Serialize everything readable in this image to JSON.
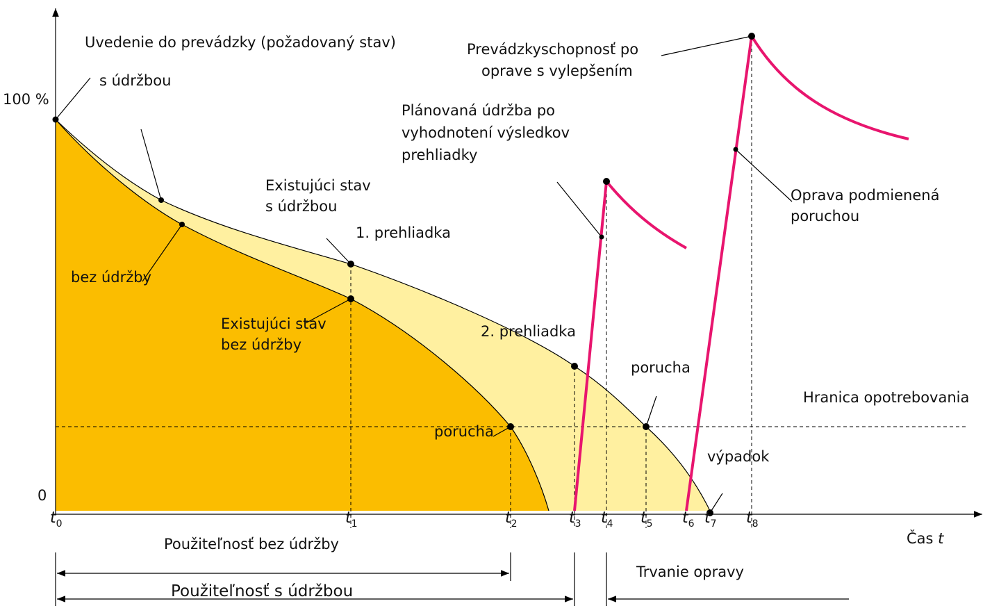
{
  "axis": {
    "y_top": "100 %",
    "y_zero": "0",
    "x_label": "Čas",
    "x_symbol": "t"
  },
  "time_ticks": [
    {
      "symbol": "t",
      "index": "0"
    },
    {
      "symbol": "t",
      "index": "1"
    },
    {
      "symbol": "t",
      "index": "2"
    },
    {
      "symbol": "t",
      "index": "3"
    },
    {
      "symbol": "t",
      "index": "4"
    },
    {
      "symbol": "t",
      "index": "5"
    },
    {
      "symbol": "t",
      "index": "6"
    },
    {
      "symbol": "t",
      "index": "7"
    },
    {
      "symbol": "t",
      "index": "8"
    }
  ],
  "annotations": {
    "commissioning": "Uvedenie do prevádzky (požadovaný stav)",
    "with_maintenance": "s údržbou",
    "without_maintenance": "bez údržby",
    "existing_with": [
      "Existujúci stav",
      "s údržbou"
    ],
    "first_inspection": "1. prehliadka",
    "existing_without": [
      "Existujúci stav",
      "bez údržby"
    ],
    "second_inspection": "2. prehliadka",
    "failure_1": "porucha",
    "failure_2": "porucha",
    "planned": [
      "Plánovaná údržba po",
      "vyhodnotení výsledkov",
      "prehliadky"
    ],
    "improved": [
      "Prevádzkyschopnosť po",
      "oprave s vylepšením"
    ],
    "repair": [
      "Oprava podmienená",
      "poruchou"
    ],
    "wear_limit": "Hranica opotrebovania",
    "outage": "výpadok"
  },
  "spans": {
    "usable_without": "Použiteľnosť bez údržby",
    "usable_with": "Použiteľnosť s údržbou",
    "repair_duration": "Trvanie opravy"
  }
}
